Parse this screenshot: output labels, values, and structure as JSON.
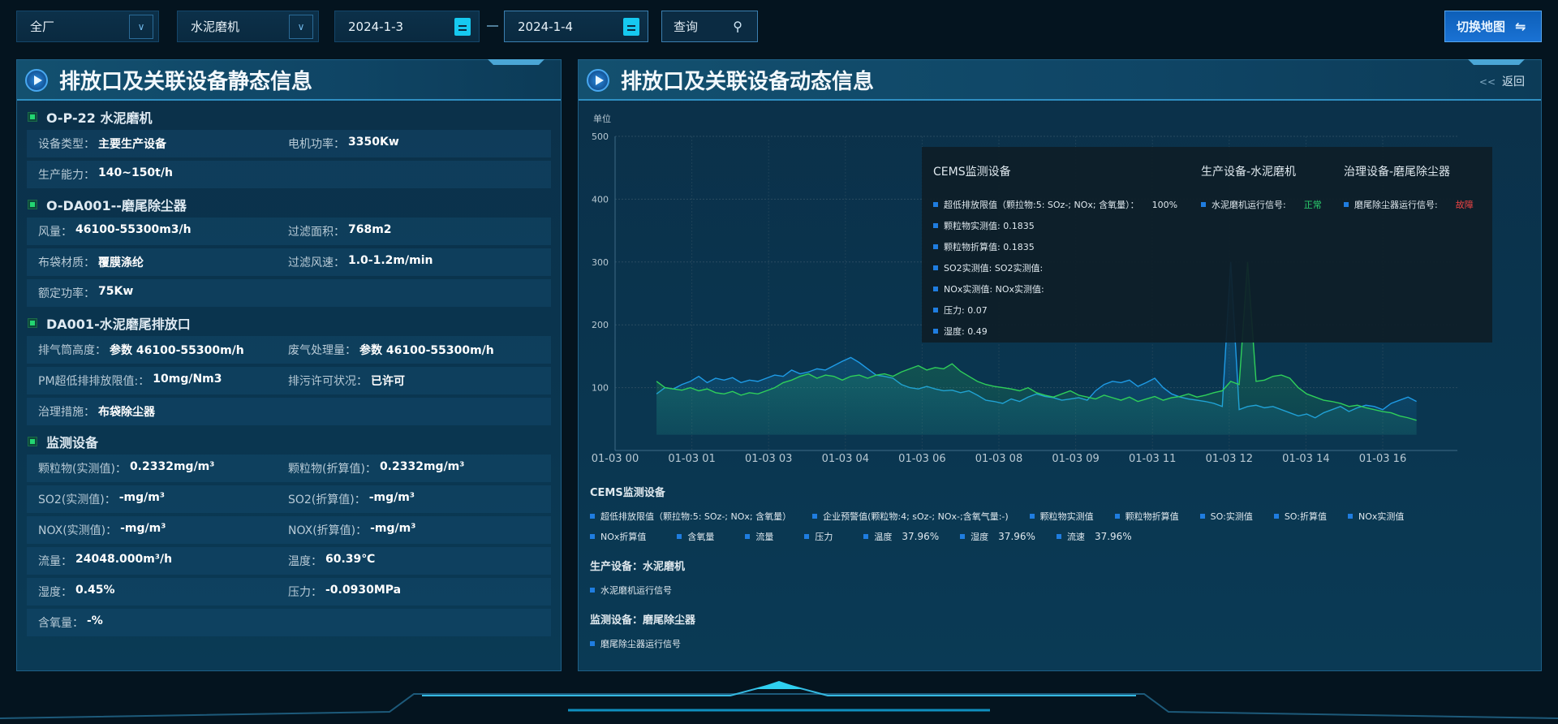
{
  "filters": {
    "plant": "全厂",
    "device": "水泥磨机",
    "date_from": "2024-1-3",
    "date_to": "2024-1-4",
    "query_label": "查询",
    "switch_map_label": "切换地图"
  },
  "left_panel": {
    "title": "排放口及关联设备静态信息",
    "sections": [
      {
        "title": "O-P-22 水泥磨机",
        "rows": [
          [
            [
              "设备类型：",
              "主要生产设备"
            ],
            [
              "电机功率：",
              "3350Kw"
            ]
          ],
          [
            [
              "生产能力：",
              "140~150t/h"
            ]
          ]
        ]
      },
      {
        "title": "O-DA001--磨尾除尘器",
        "rows": [
          [
            [
              "风量：",
              "46100-55300m3/h"
            ],
            [
              "过滤面积：",
              "768m2"
            ]
          ],
          [
            [
              "布袋材质：",
              "覆膜涤纶"
            ],
            [
              "过滤风速：",
              "1.0-1.2m/min"
            ]
          ],
          [
            [
              "额定功率：",
              "75Kw"
            ]
          ]
        ]
      },
      {
        "title": "DA001-水泥磨尾排放口",
        "rows": [
          [
            [
              "排气筒高度：",
              "参数 46100-55300m/h"
            ],
            [
              "废气处理量：",
              "参数 46100-55300m/h"
            ]
          ],
          [
            [
              "PM超低排排放限值:：",
              "10mg/Nm3"
            ],
            [
              "排污许可状况：",
              "已许可"
            ]
          ],
          [
            [
              "治理措施：",
              "布袋除尘器"
            ]
          ]
        ]
      },
      {
        "title": "监测设备",
        "rows": [
          [
            [
              "颗粒物(实测值)：",
              "0.2332mg/m³"
            ],
            [
              "颗粒物(折算值)：",
              "0.2332mg/m³"
            ]
          ],
          [
            [
              "SO2(实测值)：",
              "-mg/m³"
            ],
            [
              "SO2(折算值)：",
              "-mg/m³"
            ]
          ],
          [
            [
              "NOX(实测值)：",
              "-mg/m³"
            ],
            [
              "NOX(折算值)：",
              "-mg/m³"
            ]
          ],
          [
            [
              "流量：",
              "24048.000m³/h"
            ],
            [
              "温度：",
              "60.39℃"
            ]
          ],
          [
            [
              "湿度：",
              "0.45%"
            ],
            [
              "压力：",
              "-0.0930MPa"
            ]
          ],
          [
            [
              "含氧量：",
              "-%"
            ]
          ]
        ]
      }
    ]
  },
  "right_panel": {
    "title": "排放口及关联设备动态信息",
    "back_label": "返回",
    "tooltip": {
      "cems_title": "CEMS监测设备",
      "cems_items": [
        [
          "超低排放限值（颗拉物:5: SOz-; NOx; 含氧量）：",
          "100%"
        ],
        [
          "颗粒物实测值: 0.1835",
          ""
        ],
        [
          "颗粒物折算值: 0.1835",
          ""
        ],
        [
          "SO2实测值: SO2实测值:",
          ""
        ],
        [
          "NOx实测值: NOx实测值:",
          ""
        ],
        [
          "压力: 0.07",
          ""
        ],
        [
          "湿度: 0.49",
          ""
        ]
      ],
      "prod_title": "生产设备-水泥磨机",
      "prod_item": "水泥磨机运行信号:",
      "prod_status": "正常",
      "treat_title": "治理设备-磨尾除尘器",
      "treat_item": "磨尾除尘器运行信号:",
      "treat_status": "故障"
    },
    "legend": {
      "cems_title": "CEMS监测设备",
      "cems_line1": [
        "超低排放限值（颗拉物:5: SOz-; NOx; 含氧量）",
        "企业预警值(颗粒物:4; sOz-; NOx-;含氧气量:-)",
        "颗粒物实测值",
        "颗粒物折算值",
        "SO:实测值",
        "SO:折算值",
        "NOx实测值"
      ],
      "cems_line2": [
        [
          "NOx折算值",
          ""
        ],
        [
          "含氧量",
          ""
        ],
        [
          "流量",
          ""
        ],
        [
          "压力",
          ""
        ],
        [
          "温度",
          "37.96%"
        ],
        [
          "湿度",
          "37.96%"
        ],
        [
          "流速",
          "37.96%"
        ]
      ],
      "prod_title": "生产设备：水泥磨机",
      "prod_item": "水泥磨机运行信号",
      "mon_title": "监测设备：磨尾除尘器",
      "mon_item": "磨尾除尘器运行信号"
    }
  },
  "chart_data": {
    "type": "line",
    "ylabel": "单位",
    "ylim": [
      0,
      500
    ],
    "yticks": [
      100,
      200,
      300,
      400,
      500
    ],
    "x_tick_labels": [
      "01-03 00",
      "01-03 01",
      "01-03 03",
      "01-03 04",
      "01-03 06",
      "01-03 08",
      "01-03 09",
      "01-03 11",
      "01-03 12",
      "01-03 14",
      "01-03 16"
    ],
    "grid": true,
    "series": [
      {
        "color": "#1e9be6",
        "values": [
          90,
          100,
          98,
          105,
          110,
          118,
          108,
          115,
          112,
          116,
          108,
          112,
          110,
          115,
          120,
          118,
          128,
          122,
          125,
          130,
          128,
          135,
          142,
          148,
          140,
          130,
          120,
          118,
          115,
          105,
          100,
          98,
          102,
          98,
          95,
          96,
          92,
          95,
          88,
          80,
          78,
          75,
          82,
          78,
          85,
          90,
          86,
          84,
          80,
          82,
          84,
          80,
          95,
          105,
          110,
          108,
          112,
          102,
          108,
          115,
          100,
          90,
          85,
          82,
          80,
          78,
          75,
          70,
          300,
          65,
          70,
          72,
          68,
          70,
          65,
          60,
          55,
          58,
          52,
          60,
          65,
          70,
          62,
          68,
          72,
          70,
          65,
          75,
          80,
          85,
          78
        ]
      },
      {
        "color": "#2fcf5a",
        "values": [
          110,
          100,
          98,
          96,
          100,
          95,
          98,
          92,
          90,
          94,
          88,
          92,
          90,
          95,
          100,
          108,
          112,
          118,
          122,
          115,
          120,
          118,
          112,
          118,
          120,
          115,
          120,
          122,
          118,
          125,
          130,
          135,
          128,
          132,
          130,
          138,
          126,
          118,
          110,
          105,
          102,
          100,
          98,
          95,
          100,
          92,
          88,
          85,
          90,
          95,
          88,
          85,
          82,
          88,
          84,
          80,
          85,
          78,
          82,
          86,
          80,
          84,
          86,
          90,
          85,
          88,
          92,
          95,
          110,
          105,
          300,
          110,
          112,
          118,
          120,
          115,
          100,
          90,
          85,
          80,
          78,
          75,
          70,
          72,
          68,
          65,
          62,
          60,
          55,
          52,
          48
        ]
      }
    ]
  }
}
